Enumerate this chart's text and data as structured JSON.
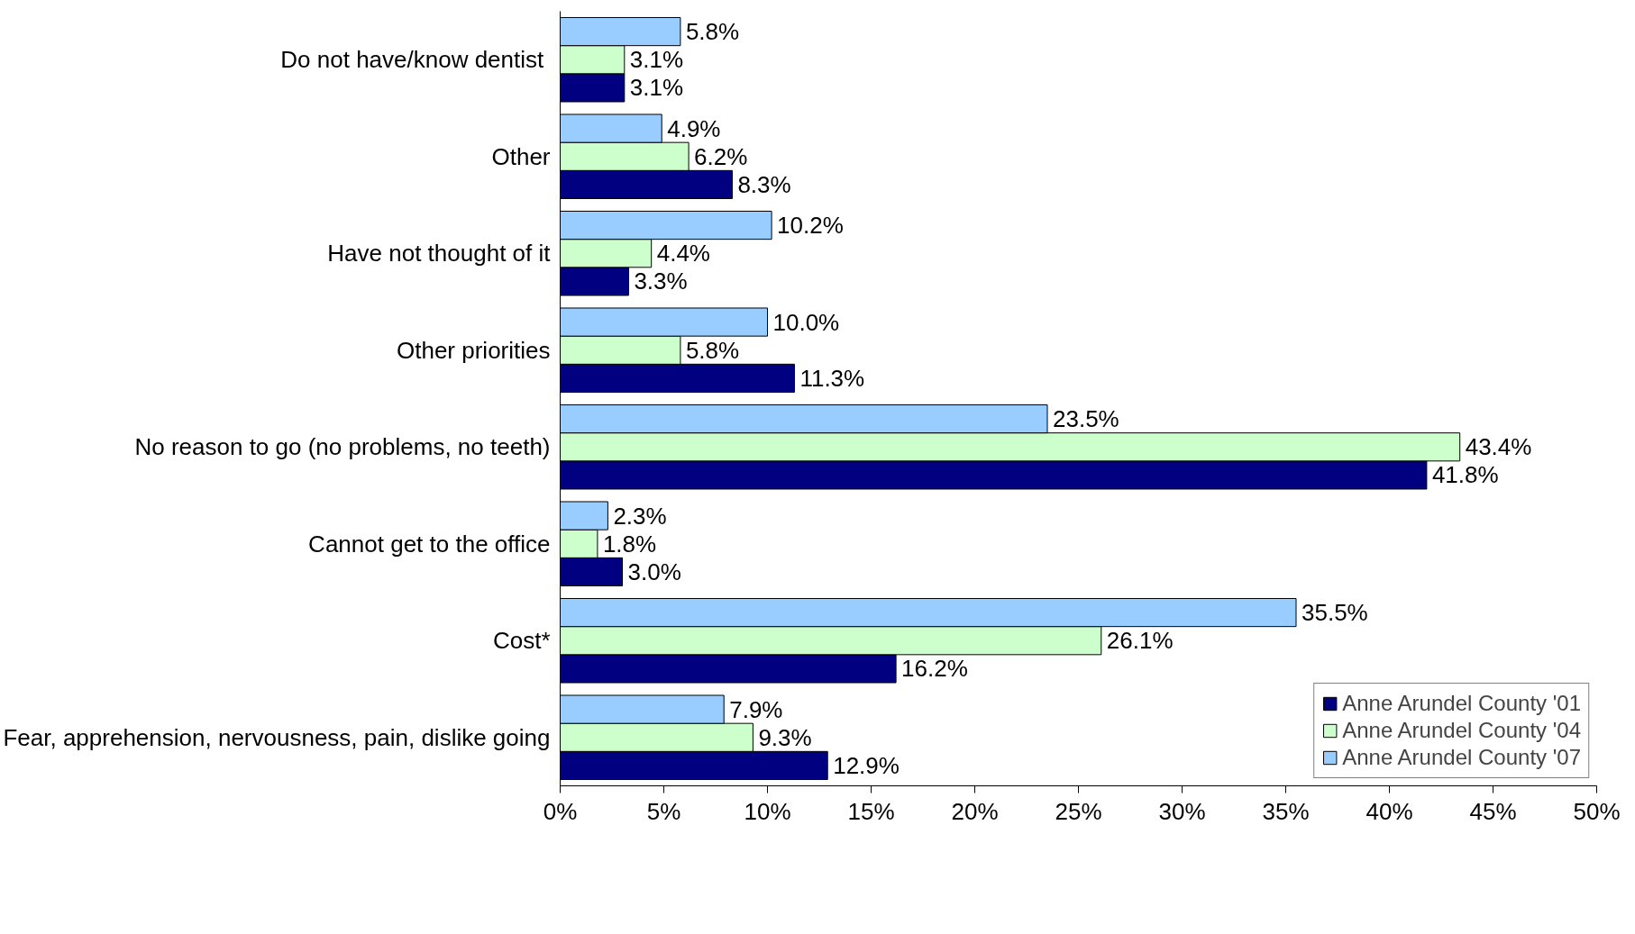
{
  "chart_data": {
    "type": "bar",
    "orientation": "horizontal",
    "categories": [
      "Do not have/know  dentist",
      "Other",
      "Have not thought of it",
      "Other priorities",
      "No reason to go (no problems, no teeth)",
      "Cannot get to the office",
      "Cost*",
      "Fear, apprehension, nervousness, pain, dislike going"
    ],
    "series": [
      {
        "name": "Anne Arundel County '01",
        "color": "#000080",
        "values": [
          3.1,
          8.3,
          3.3,
          11.3,
          41.8,
          3.0,
          16.2,
          12.9
        ],
        "value_labels": [
          "3.1%",
          "8.3%",
          "3.3%",
          "11.3%",
          "41.8%",
          "3.0%",
          "16.2%",
          "12.9%"
        ]
      },
      {
        "name": "Anne Arundel County '04",
        "color": "#ccffcc",
        "values": [
          3.1,
          6.2,
          4.4,
          5.8,
          43.4,
          1.8,
          26.1,
          9.3
        ],
        "value_labels": [
          "3.1%",
          "6.2%",
          "4.4%",
          "5.8%",
          "43.4%",
          "1.8%",
          "26.1%",
          "9.3%"
        ]
      },
      {
        "name": "Anne Arundel County '07",
        "color": "#99ccff",
        "values": [
          5.8,
          4.9,
          10.2,
          10.0,
          23.5,
          2.3,
          35.5,
          7.9
        ],
        "value_labels": [
          "5.8%",
          "4.9%",
          "10.2%",
          "10.0%",
          "23.5%",
          "2.3%",
          "35.5%",
          "7.9%"
        ]
      }
    ],
    "xlim": [
      0,
      50
    ],
    "xticks": [
      {
        "value": 0,
        "label": "0%"
      },
      {
        "value": 5,
        "label": "5%"
      },
      {
        "value": 10,
        "label": "10%"
      },
      {
        "value": 15,
        "label": "15%"
      },
      {
        "value": 20,
        "label": "20%"
      },
      {
        "value": 25,
        "label": "25%"
      },
      {
        "value": 30,
        "label": "30%"
      },
      {
        "value": 35,
        "label": "35%"
      },
      {
        "value": 40,
        "label": "40%"
      },
      {
        "value": 45,
        "label": "45%"
      },
      {
        "value": 50,
        "label": "50%"
      }
    ],
    "grid": false,
    "legend": "bottom"
  }
}
